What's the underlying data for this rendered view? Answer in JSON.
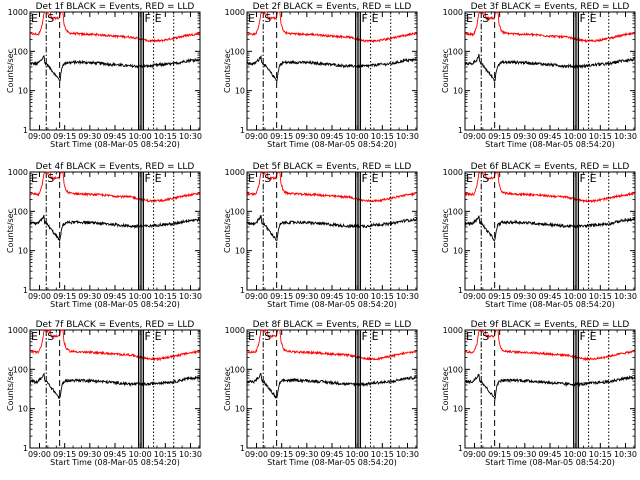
{
  "chart_data": {
    "type": "line",
    "shared": {
      "xlabel": "Start Time (08-Mar-05 08:54:20)",
      "ylabel": "Counts/sec",
      "x_ticks": [
        "09:00",
        "09:15",
        "09:30",
        "09:45",
        "10:00",
        "10:15",
        "10:30"
      ],
      "x_ticks_min": [
        0,
        15,
        30,
        45,
        60,
        75,
        90
      ],
      "x_range_min": [
        -5.67,
        95.67
      ],
      "y_ticks": [
        "1",
        "10",
        "100",
        "1000"
      ],
      "y_tick_values": [
        1,
        10,
        100,
        1000
      ],
      "ylim": [
        1,
        1000
      ],
      "y_scale": "log",
      "series_colors": {
        "events": "#000000",
        "lld": "#ff0000"
      },
      "markers": [
        {
          "label": "E",
          "x_min": -5.5,
          "style": "none"
        },
        {
          "label": "S",
          "x_min": 4,
          "style": "dashdot"
        },
        {
          "label": "",
          "x_min": 12,
          "style": "dashed"
        },
        {
          "label": "",
          "x_min": 59,
          "style": "solid"
        },
        {
          "label": "",
          "x_min": 60,
          "style": "solid"
        },
        {
          "label": "",
          "x_min": 61,
          "style": "solid"
        },
        {
          "label": "F",
          "x_min": 62,
          "style": "solid"
        },
        {
          "label": "E",
          "x_min": 68,
          "style": "dotted"
        },
        {
          "label": "",
          "x_min": 80,
          "style": "dotted"
        }
      ],
      "lld_profile": [
        {
          "t": -5.6,
          "v": 280
        },
        {
          "t": -0.5,
          "v": 270
        },
        {
          "t": 1.5,
          "v": 450
        },
        {
          "t": 2.5,
          "v": 900
        },
        {
          "t": 3.2,
          "v": 1000
        },
        {
          "t": 6.5,
          "v": 1000
        },
        {
          "t": 6.8,
          "v": 700
        },
        {
          "t": 11.8,
          "v": 700
        },
        {
          "t": 12.6,
          "v": 1000
        },
        {
          "t": 14,
          "v": 1000
        },
        {
          "t": 14.6,
          "v": 500
        },
        {
          "t": 16,
          "v": 330
        },
        {
          "t": 18,
          "v": 290
        },
        {
          "t": 25,
          "v": 275
        },
        {
          "t": 35,
          "v": 265
        },
        {
          "t": 45,
          "v": 245
        },
        {
          "t": 55,
          "v": 230
        },
        {
          "t": 65,
          "v": 185
        },
        {
          "t": 72,
          "v": 185
        },
        {
          "t": 80,
          "v": 215
        },
        {
          "t": 88,
          "v": 255
        },
        {
          "t": 95.6,
          "v": 285
        }
      ],
      "events_profile": [
        {
          "t": -5.6,
          "v": 50
        },
        {
          "t": -1.5,
          "v": 48
        },
        {
          "t": 1.5,
          "v": 62
        },
        {
          "t": 2.8,
          "v": 82
        },
        {
          "t": 3.0,
          "v": 50
        },
        {
          "t": 4.0,
          "v": 50
        },
        {
          "t": 12.2,
          "v": 18
        },
        {
          "t": 12.8,
          "v": 28
        },
        {
          "t": 13.8,
          "v": 45
        },
        {
          "t": 16,
          "v": 52
        },
        {
          "t": 25,
          "v": 53
        },
        {
          "t": 35,
          "v": 50
        },
        {
          "t": 45,
          "v": 46
        },
        {
          "t": 55,
          "v": 42
        },
        {
          "t": 65,
          "v": 42
        },
        {
          "t": 72,
          "v": 46
        },
        {
          "t": 80,
          "v": 48
        },
        {
          "t": 88,
          "v": 58
        },
        {
          "t": 95.6,
          "v": 62
        }
      ]
    },
    "panels": [
      {
        "title": "Det 1f BLACK = Events, RED = LLD"
      },
      {
        "title": "Det 2f BLACK = Events, RED = LLD"
      },
      {
        "title": "Det 3f BLACK = Events, RED = LLD"
      },
      {
        "title": "Det 4f BLACK = Events, RED = LLD"
      },
      {
        "title": "Det 5f BLACK = Events, RED = LLD"
      },
      {
        "title": "Det 6f BLACK = Events, RED = LLD"
      },
      {
        "title": "Det 7f BLACK = Events, RED = LLD"
      },
      {
        "title": "Det 8f BLACK = Events, RED = LLD"
      },
      {
        "title": "Det 9f BLACK = Events, RED = LLD"
      }
    ]
  }
}
